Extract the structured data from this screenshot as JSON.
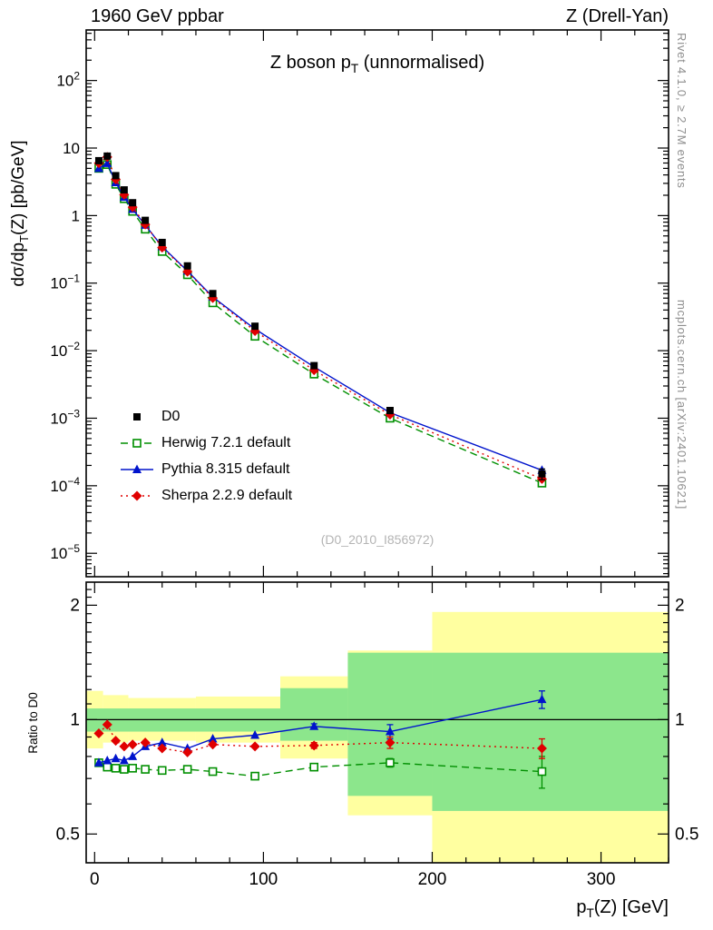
{
  "header": {
    "left": "1960 GeV ppbar",
    "right": "Z (Drell-Yan)"
  },
  "side_notes": {
    "right_top": "Rivet 4.1.0, ≥ 2.7M events",
    "right_bottom": "mcplots.cern.ch [arXiv:2401.10621]"
  },
  "watermark": "(D0_2010_I856972)",
  "titles": {
    "main": {
      "pre": "Z boson p",
      "sub": "T",
      "post": " (unnormalised)"
    },
    "ylabel_main": {
      "pre": "dσ/dp",
      "sub": "T",
      "post": "(Z) [pb/GeV]"
    },
    "ylabel_ratio": "Ratio to D0",
    "xlabel": {
      "pre": "p",
      "sub": "T",
      "post": "(Z) [GeV]"
    }
  },
  "chart_data": {
    "type": "line",
    "title": "Z boson p_T (unnormalised)",
    "xlabel": "p_T(Z) [GeV]",
    "ylabel_main": "dσ/dp_T(Z) [pb/GeV]",
    "ylabel_ratio": "Ratio to D0",
    "x": [
      2.5,
      7.5,
      12.5,
      17.5,
      22.5,
      30,
      40,
      55,
      70,
      95,
      130,
      175,
      265
    ],
    "reference": {
      "label": "D0",
      "color": "#000000",
      "marker": "square-filled",
      "values": [
        6.5,
        7.6,
        3.9,
        2.4,
        1.55,
        0.85,
        0.4,
        0.18,
        0.07,
        0.023,
        0.006,
        0.0013,
        0.00015
      ],
      "rel_err": [
        0.04,
        0.04,
        0.04,
        0.04,
        0.04,
        0.04,
        0.04,
        0.05,
        0.05,
        0.06,
        0.08,
        0.1,
        0.18
      ]
    },
    "series": [
      {
        "label": "Herwig 7.2.1 default",
        "color": "#008f00",
        "line": "dashed",
        "marker": "square-open",
        "ratio": [
          0.77,
          0.75,
          0.745,
          0.74,
          0.745,
          0.74,
          0.735,
          0.74,
          0.73,
          0.71,
          0.75,
          0.77,
          0.73
        ],
        "ratio_err": [
          0,
          0,
          0,
          0,
          0,
          0,
          0,
          0,
          0,
          0,
          0.015,
          0.02,
          0.07
        ]
      },
      {
        "label": "Pythia 8.315 default",
        "color": "#0013cc",
        "line": "solid",
        "marker": "triangle-filled",
        "ratio": [
          0.77,
          0.78,
          0.79,
          0.78,
          0.8,
          0.85,
          0.87,
          0.84,
          0.89,
          0.91,
          0.96,
          0.93,
          1.13
        ],
        "ratio_err": [
          0,
          0,
          0,
          0,
          0,
          0,
          0,
          0,
          0,
          0,
          0.015,
          0.04,
          0.06
        ]
      },
      {
        "label": "Sherpa 2.2.9 default",
        "color": "#e00000",
        "line": "dotted",
        "marker": "diamond-filled",
        "ratio": [
          0.92,
          0.97,
          0.88,
          0.85,
          0.86,
          0.87,
          0.84,
          0.82,
          0.86,
          0.85,
          0.855,
          0.87,
          0.84
        ],
        "ratio_err": [
          0,
          0,
          0,
          0,
          0,
          0,
          0,
          0,
          0,
          0,
          0.015,
          0.03,
          0.05
        ]
      }
    ],
    "ratio_bands": {
      "yellow_color": "#ffffa0",
      "green_color": "#8ce68c",
      "yellow": [
        [
          -5,
          5,
          0.84,
          1.19
        ],
        [
          5,
          20,
          0.87,
          1.16
        ],
        [
          20,
          60,
          0.88,
          1.14
        ],
        [
          60,
          110,
          0.87,
          1.15
        ],
        [
          110,
          150,
          0.79,
          1.3
        ],
        [
          150,
          200,
          0.56,
          1.52
        ],
        [
          200,
          340,
          0.42,
          1.92
        ]
      ],
      "green": [
        [
          -5,
          110,
          0.93,
          1.07
        ],
        [
          110,
          150,
          0.88,
          1.21
        ],
        [
          150,
          200,
          0.63,
          1.5
        ],
        [
          200,
          340,
          0.575,
          1.5
        ]
      ]
    },
    "axes": {
      "x": {
        "min": -5,
        "max": 340,
        "major_ticks": [
          0,
          100,
          200,
          300
        ],
        "minor_step": 20
      },
      "y_main": {
        "scale": "log",
        "min": 4.5e-06,
        "max": 560,
        "labeled_exponents": [
          2,
          1,
          0,
          -1,
          -2,
          -3,
          -4,
          -5
        ]
      },
      "y_ratio": {
        "scale": "log",
        "min": 0.42,
        "max": 2.3,
        "labeled_ticks": [
          0.5,
          1,
          2
        ],
        "minor_ticks": [
          0.6,
          0.7,
          0.8,
          0.9,
          1.1,
          1.2,
          1.3,
          1.4,
          1.5,
          1.6,
          1.7,
          1.8,
          1.9,
          2.1,
          2.2
        ]
      }
    }
  }
}
